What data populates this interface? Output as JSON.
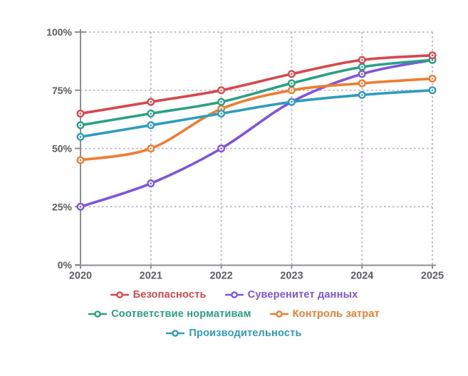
{
  "chart_data": {
    "type": "line",
    "title": "",
    "xlabel": "",
    "ylabel": "",
    "x_categories": [
      "2020",
      "2021",
      "2022",
      "2023",
      "2024",
      "2025"
    ],
    "ylim": [
      0,
      100
    ],
    "y_ticks": {
      "values": [
        0,
        25,
        50,
        75,
        100
      ],
      "labels": [
        "0%",
        "25%",
        "50%",
        "75%",
        "100%"
      ]
    },
    "grid": "dashed vertical and horizontal",
    "legend_position": "bottom",
    "series": [
      {
        "name": "Безопасность",
        "color": "#d7474d",
        "values": [
          65,
          70,
          75,
          82,
          88,
          90
        ]
      },
      {
        "name": "Суверенитет данных",
        "color": "#7f54df",
        "values": [
          25,
          35,
          50,
          70,
          82,
          88
        ]
      },
      {
        "name": "Соответствие нормативам",
        "color": "#2aa085",
        "values": [
          60,
          65,
          70,
          78,
          85,
          88
        ]
      },
      {
        "name": "Контроль затрат",
        "color": "#ee7d2f",
        "values": [
          45,
          50,
          67,
          75,
          78,
          80
        ]
      },
      {
        "name": "Производительность",
        "color": "#2e9cbc",
        "values": [
          55,
          60,
          65,
          70,
          73,
          75
        ]
      }
    ],
    "draw_order": [
      1,
      3,
      4,
      2,
      0
    ],
    "colors": {
      "axis": "#8d8d96",
      "tick_label": "#5c5c66",
      "grid": "#c3aed1",
      "marker_fill": "#ffffff",
      "background": "#ffffff"
    }
  }
}
